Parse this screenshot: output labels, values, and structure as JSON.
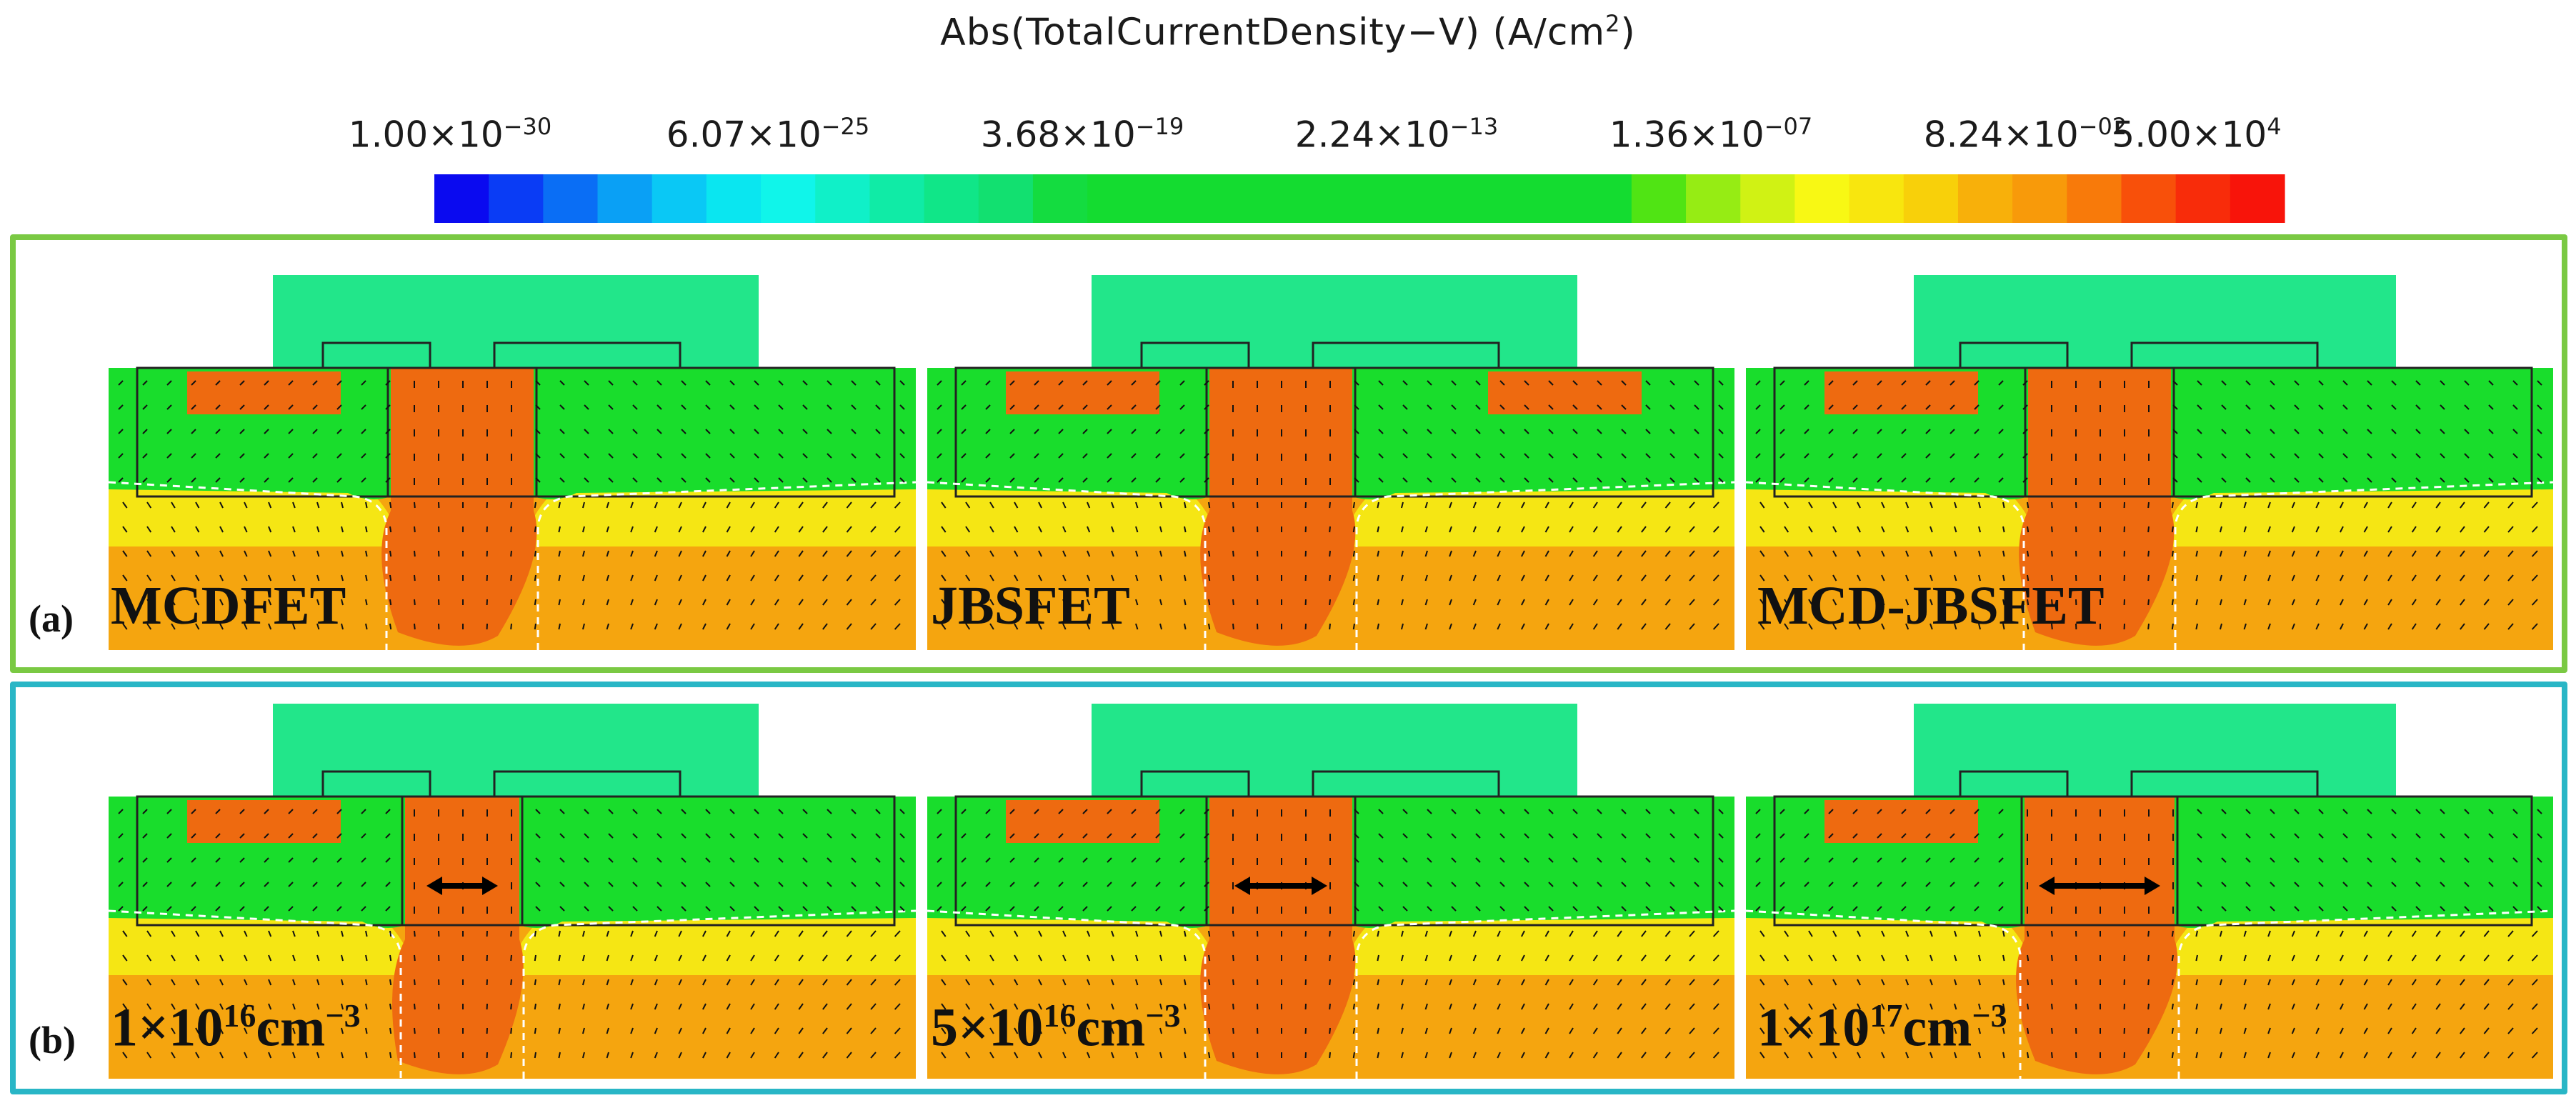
{
  "colorbar": {
    "title_main": "Abs(TotalCurrentDensity−V) (A/cm",
    "title_unit_exp": "2",
    "title_close": ")",
    "ticks": [
      {
        "mant": "1.00×10",
        "exp": "−30"
      },
      {
        "mant": "6.07×10",
        "exp": "−25"
      },
      {
        "mant": "3.68×10",
        "exp": "−19"
      },
      {
        "mant": "2.24×10",
        "exp": "−13"
      },
      {
        "mant": "1.36×10",
        "exp": "−07"
      },
      {
        "mant": "8.24×10",
        "exp": "−02"
      },
      {
        "mant": "5.00×10",
        "exp": "4"
      }
    ],
    "colors": [
      "#0a0af0",
      "#0a3cf5",
      "#0a6ef5",
      "#0aa0f5",
      "#0ac8f5",
      "#0ae6f0",
      "#10f5ea",
      "#10f0c8",
      "#10eba6",
      "#10e688",
      "#12e070",
      "#14dc40",
      "#14dc30",
      "#14dc30",
      "#14dc30",
      "#14dc30",
      "#14dc30",
      "#14dc30",
      "#14dc30",
      "#14dc30",
      "#14dc30",
      "#14dc30",
      "#50e414",
      "#96ec14",
      "#d0f214",
      "#f8f814",
      "#f8e60e",
      "#f8d00a",
      "#f8b00a",
      "#f89a0a",
      "#f87a0a",
      "#f8500a",
      "#f82c0a",
      "#f8140a"
    ]
  },
  "row_a": {
    "label": "(a)",
    "devices": [
      "MCDFET",
      "JBSFET",
      "MCD-JBSFET"
    ]
  },
  "row_b": {
    "label": "(b)",
    "dopings": [
      {
        "mant": "1×10",
        "exp": "16",
        "unit": "cm",
        "unit_exp": "−3"
      },
      {
        "mant": "5×10",
        "exp": "16",
        "unit": "cm",
        "unit_exp": "−3"
      },
      {
        "mant": "1×10",
        "exp": "17",
        "unit": "cm",
        "unit_exp": "−3"
      }
    ]
  },
  "field_colors": {
    "gate_cap": "#22e68a",
    "green": "#19dd2c",
    "yellow": "#f5e614",
    "orange": "#f5a50f",
    "hot": "#ee6a10",
    "outline": "#222222"
  }
}
